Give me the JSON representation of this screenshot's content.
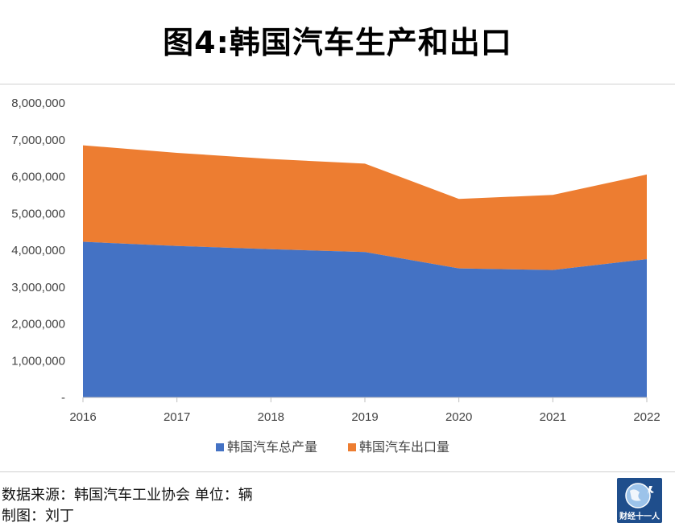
{
  "title": "图4:韩国汽车生产和出口",
  "footer": {
    "source": "数据来源：韩国汽车工业协会  单位：辆",
    "author": "制图：刘丁"
  },
  "logo": {
    "icon": "globe-runner-icon",
    "text": "财经十一人"
  },
  "colors": {
    "production": "#4472C4",
    "export": "#ED7D31"
  },
  "chart_data": {
    "type": "area",
    "stacked": true,
    "x": [
      "2016",
      "2017",
      "2018",
      "2019",
      "2020",
      "2021",
      "2022"
    ],
    "series": [
      {
        "name": "韩国汽车总产量",
        "values": [
          4228500,
          4114900,
          4028800,
          3950600,
          3506800,
          3462400,
          3757000
        ]
      },
      {
        "name": "韩国汽车出口量",
        "values": [
          2621700,
          2530200,
          2449700,
          2401400,
          1887400,
          2039800,
          2300000
        ]
      }
    ],
    "ylim": [
      0,
      8000000
    ],
    "yticks": [
      "-",
      "1,000,000",
      "2,000,000",
      "3,000,000",
      "4,000,000",
      "5,000,000",
      "6,000,000",
      "7,000,000",
      "8,000,000"
    ],
    "grid": false,
    "legend": "bottom"
  }
}
